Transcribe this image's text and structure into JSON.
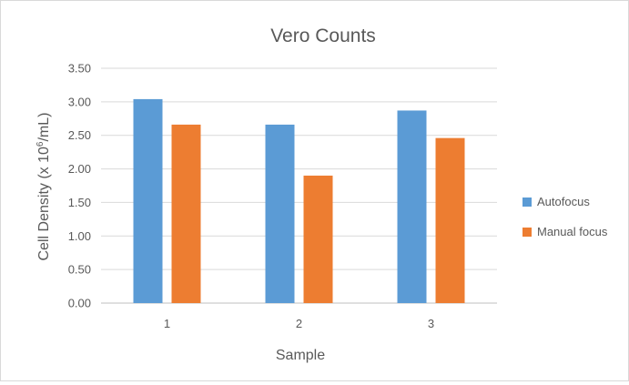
{
  "chart_data": {
    "type": "bar",
    "title": "Vero Counts",
    "xlabel": "Sample",
    "ylabel": "Cell Density (x 10",
    "ylabel_superscript": "6",
    "ylabel_suffix": "/mL)",
    "categories": [
      "1",
      "2",
      "3"
    ],
    "series": [
      {
        "name": "Autofocus",
        "values": [
          3.04,
          2.66,
          2.87
        ],
        "color": "#5b9bd5"
      },
      {
        "name": "Manual focus",
        "values": [
          2.66,
          1.9,
          2.46
        ],
        "color": "#ed7d31"
      }
    ],
    "ylim": [
      0,
      3.5
    ],
    "yticks": [
      "0.00",
      "0.50",
      "1.00",
      "1.50",
      "2.00",
      "2.50",
      "3.00",
      "3.50"
    ],
    "grid": true,
    "legend_position": "right",
    "gridline_color": "#d9d9d9",
    "axis_line_color": "#bfbfbf",
    "text_color": "#595959"
  }
}
